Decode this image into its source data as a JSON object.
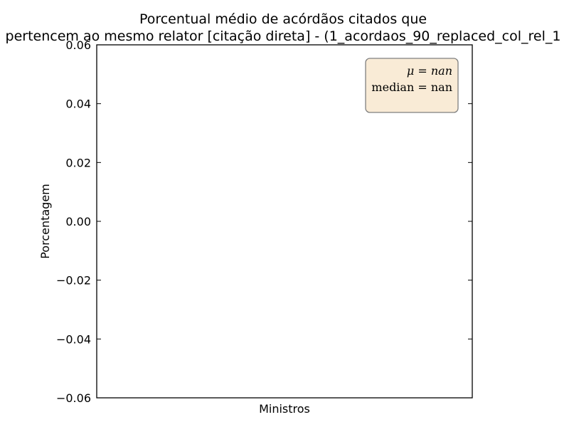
{
  "chart_data": {
    "type": "bar",
    "title_lines": [
      "Porcentual médio de acórdãos citados que",
      "pertencem ao mesmo relator [citação direta] - (1_acordaos_90_replaced_col_rel_1"
    ],
    "xlabel": "Ministros",
    "ylabel": "Porcentagem",
    "categories": [],
    "values": [],
    "ylim": [
      -0.06,
      0.06
    ],
    "yticks": [
      0.06,
      0.04,
      0.02,
      0.0,
      -0.02,
      -0.04,
      -0.06
    ],
    "ytick_labels": [
      "0.06",
      "0.04",
      "0.02",
      "0.00",
      "−0.02",
      "−0.04",
      "−0.06"
    ],
    "grid": false,
    "stats_box": {
      "line1": "μ = nan",
      "line2": "median = nan",
      "background": "#f9ebd6",
      "border": "#7f7f7f",
      "placement": "top-right"
    }
  }
}
